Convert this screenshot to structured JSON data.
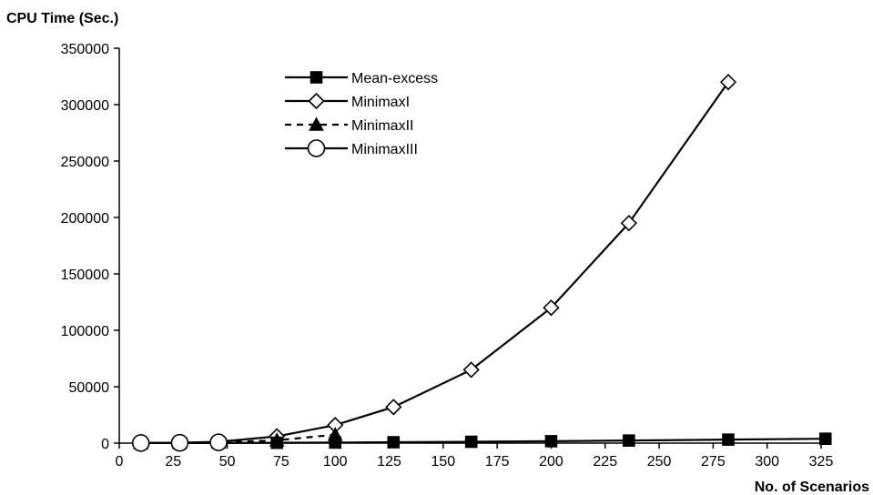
{
  "chart_data": {
    "type": "line",
    "ylabel": "CPU Time (Sec.)",
    "xlabel": "No. of Scenarios",
    "xlim": [
      0,
      325
    ],
    "ylim": [
      0,
      350000
    ],
    "xticks": [
      0,
      25,
      50,
      75,
      100,
      125,
      150,
      175,
      200,
      225,
      250,
      275,
      300,
      325
    ],
    "yticks": [
      0,
      50000,
      100000,
      150000,
      200000,
      250000,
      300000,
      350000
    ],
    "grid": false,
    "legend_position": "top-center",
    "series": [
      {
        "name": "Mean-excess",
        "marker": "square",
        "dash": "solid",
        "color": "#000000",
        "x": [
          10,
          28,
          46,
          73,
          100,
          127,
          163,
          200,
          236,
          282,
          327
        ],
        "y": [
          50,
          100,
          200,
          300,
          500,
          800,
          1200,
          1700,
          2300,
          3100,
          3900
        ]
      },
      {
        "name": "MinimaxI",
        "marker": "diamond",
        "dash": "solid",
        "color": "#000000",
        "x": [
          10,
          28,
          46,
          73,
          100,
          127,
          163,
          200,
          236,
          282
        ],
        "y": [
          100,
          300,
          1200,
          6000,
          16000,
          32000,
          65000,
          120000,
          195000,
          320000
        ]
      },
      {
        "name": "MinimaxII",
        "marker": "triangle",
        "dash": "dashed",
        "color": "#000000",
        "x": [
          10,
          28,
          46,
          73,
          100
        ],
        "y": [
          100,
          200,
          600,
          2500,
          7500
        ]
      },
      {
        "name": "MinimaxIII",
        "marker": "circle",
        "dash": "solid",
        "color": "#000000",
        "x": [
          10,
          28,
          46
        ],
        "y": [
          100,
          300,
          700
        ]
      }
    ]
  }
}
